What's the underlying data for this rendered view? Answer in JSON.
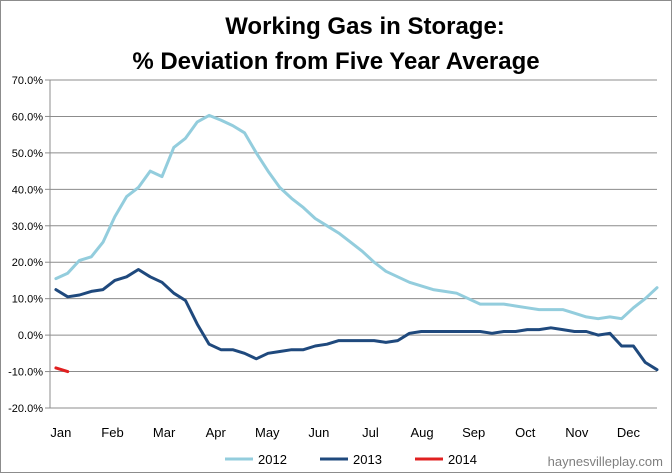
{
  "chart_data": {
    "type": "line",
    "title_lines": [
      "Working Gas in Storage:",
      "% Deviation from Five Year Average"
    ],
    "xlabel": "",
    "ylabel": "",
    "ylim": [
      -20,
      70
    ],
    "ytick_step": 10,
    "ytick_labels": [
      "70.0%",
      "60.0%",
      "50.0%",
      "40.0%",
      "30.0%",
      "20.0%",
      "10.0%",
      "0.0%",
      "-10.0%",
      "-20.0%"
    ],
    "xtick_labels": [
      "Jan",
      "Feb",
      "Mar",
      "Apr",
      "May",
      "Jun",
      "Jul",
      "Aug",
      "Sep",
      "Oct",
      "Nov",
      "Dec"
    ],
    "week_count": 52,
    "grid": true,
    "legend_position": "bottom",
    "series": [
      {
        "name": "2012",
        "color": "#93CDDD",
        "points": [
          [
            1,
            15.5
          ],
          [
            2,
            17
          ],
          [
            3,
            20.5
          ],
          [
            4,
            21.5
          ],
          [
            5,
            25.5
          ],
          [
            6,
            32.5
          ],
          [
            7,
            38
          ],
          [
            8,
            40.5
          ],
          [
            9,
            45
          ],
          [
            10,
            43.5
          ],
          [
            11,
            51.5
          ],
          [
            12,
            54
          ],
          [
            13,
            58.5
          ],
          [
            14,
            60.3
          ],
          [
            15,
            59
          ],
          [
            16,
            57.5
          ],
          [
            17,
            55.5
          ],
          [
            18,
            50
          ],
          [
            19,
            45
          ],
          [
            20,
            40.5
          ],
          [
            21,
            37.5
          ],
          [
            22,
            35
          ],
          [
            23,
            32
          ],
          [
            24,
            30
          ],
          [
            25,
            28
          ],
          [
            26,
            25.5
          ],
          [
            27,
            23
          ],
          [
            28,
            20
          ],
          [
            29,
            17.5
          ],
          [
            30,
            16
          ],
          [
            31,
            14.5
          ],
          [
            32,
            13.5
          ],
          [
            33,
            12.5
          ],
          [
            34,
            12
          ],
          [
            35,
            11.5
          ],
          [
            36,
            10
          ],
          [
            37,
            8.5
          ],
          [
            38,
            8.5
          ],
          [
            39,
            8.5
          ],
          [
            40,
            8
          ],
          [
            41,
            7.5
          ],
          [
            42,
            7
          ],
          [
            43,
            7
          ],
          [
            44,
            7
          ],
          [
            45,
            6
          ],
          [
            46,
            5
          ],
          [
            47,
            4.5
          ],
          [
            48,
            5
          ],
          [
            49,
            4.5
          ],
          [
            50,
            7.5
          ],
          [
            51,
            10
          ],
          [
            52,
            13
          ]
        ]
      },
      {
        "name": "2013",
        "color": "#1F497D",
        "points": [
          [
            1,
            12.5
          ],
          [
            2,
            10.5
          ],
          [
            3,
            11
          ],
          [
            4,
            12
          ],
          [
            5,
            12.5
          ],
          [
            6,
            15
          ],
          [
            7,
            16
          ],
          [
            8,
            18
          ],
          [
            9,
            16
          ],
          [
            10,
            14.5
          ],
          [
            11,
            11.5
          ],
          [
            12,
            9.5
          ],
          [
            13,
            3
          ],
          [
            14,
            -2.5
          ],
          [
            15,
            -4
          ],
          [
            16,
            -4
          ],
          [
            17,
            -5
          ],
          [
            18,
            -6.5
          ],
          [
            19,
            -5
          ],
          [
            20,
            -4.5
          ],
          [
            21,
            -4
          ],
          [
            22,
            -4
          ],
          [
            23,
            -3
          ],
          [
            24,
            -2.5
          ],
          [
            25,
            -1.5
          ],
          [
            26,
            -1.5
          ],
          [
            27,
            -1.5
          ],
          [
            28,
            -1.5
          ],
          [
            29,
            -2
          ],
          [
            30,
            -1.5
          ],
          [
            31,
            0.5
          ],
          [
            32,
            1
          ],
          [
            33,
            1
          ],
          [
            34,
            1
          ],
          [
            35,
            1
          ],
          [
            36,
            1
          ],
          [
            37,
            1
          ],
          [
            38,
            0.5
          ],
          [
            39,
            1
          ],
          [
            40,
            1
          ],
          [
            41,
            1.5
          ],
          [
            42,
            1.5
          ],
          [
            43,
            2
          ],
          [
            44,
            1.5
          ],
          [
            45,
            1
          ],
          [
            46,
            1
          ],
          [
            47,
            0
          ],
          [
            48,
            0.5
          ],
          [
            49,
            -3
          ],
          [
            50,
            -3
          ],
          [
            51,
            -7.5
          ],
          [
            52,
            -9.5
          ]
        ]
      },
      {
        "name": "2014",
        "color": "#E02020",
        "points": [
          [
            1,
            -9
          ],
          [
            2,
            -10
          ]
        ]
      }
    ]
  },
  "watermark": "haynesvilleplay.com"
}
